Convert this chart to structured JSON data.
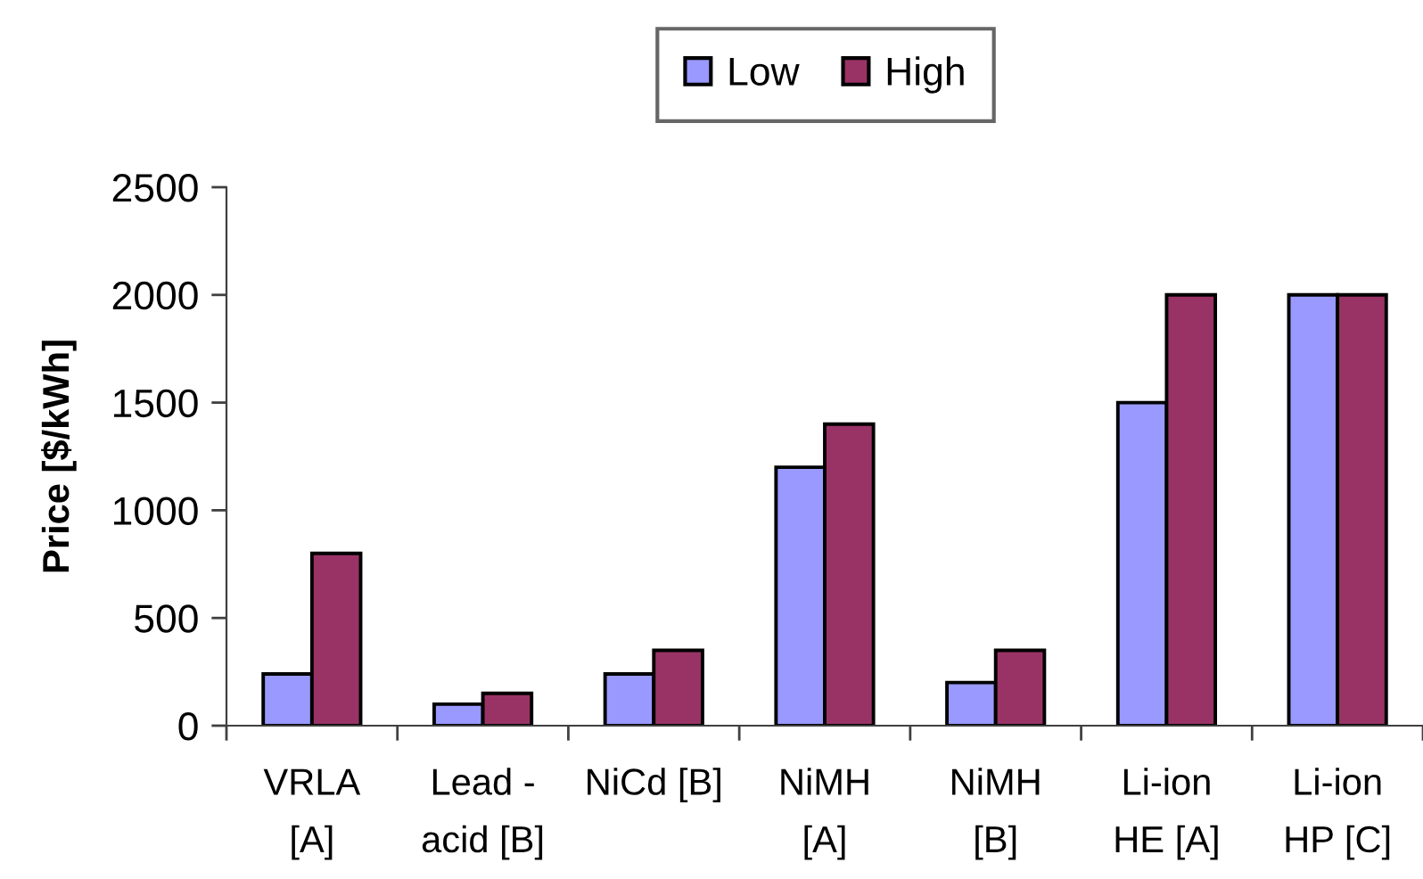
{
  "chart_data": {
    "type": "bar",
    "categories": [
      "VRLA\n[A]",
      "Lead -\nacid [B]",
      "NiCd [B]",
      "NiMH\n[A]",
      "NiMH\n[B]",
      "Li-ion\nHE [A]",
      "Li-ion\nHP [C]"
    ],
    "series": [
      {
        "name": "Low",
        "color": "#9999ff",
        "values": [
          240,
          100,
          240,
          1200,
          200,
          1500,
          2000
        ]
      },
      {
        "name": "High",
        "color": "#993366",
        "values": [
          800,
          150,
          350,
          1400,
          350,
          2000,
          2000
        ]
      }
    ],
    "ylabel": "Price [$/kWh]",
    "ylim": [
      0,
      2500
    ],
    "yticks": [
      0,
      500,
      1000,
      1500,
      2000,
      2500
    ],
    "legend": "top"
  }
}
